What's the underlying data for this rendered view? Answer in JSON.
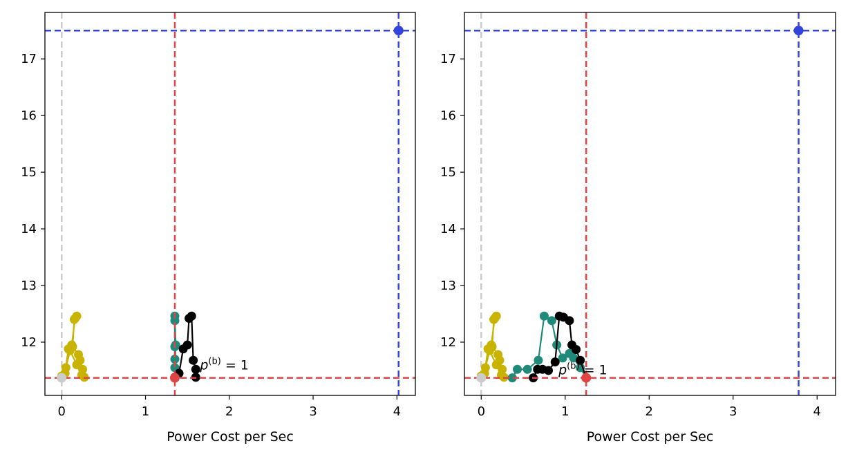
{
  "colors": {
    "blue": "#3344dd",
    "red": "#e04444",
    "gray": "#cccccc",
    "teal": "#1f8a7a",
    "black": "#000000",
    "yellow": "#c8b400"
  },
  "chart_data": [
    {
      "type": "line",
      "title": "",
      "xlabel": "Power Cost per Sec",
      "ylabel": "",
      "xlim": [
        -0.2,
        4.22
      ],
      "ylim": [
        11.06,
        17.82
      ],
      "xticks": [
        0,
        1,
        2,
        3,
        4
      ],
      "yticks": [
        12,
        13,
        14,
        15,
        16,
        17
      ],
      "reference_lines": {
        "blue_h": 17.5,
        "blue_v": 4.02,
        "red_h": 11.37,
        "red_v": 1.35,
        "gray_v": 0.0
      },
      "highlight_points": [
        {
          "x": 4.02,
          "y": 17.5,
          "color": "blue"
        },
        {
          "x": 1.35,
          "y": 11.37,
          "color": "red"
        },
        {
          "x": 0.0,
          "y": 11.37,
          "color": "gray"
        }
      ],
      "annotation": {
        "text": "p^{(b)} = 1",
        "x": 1.65,
        "y": 11.52
      },
      "series": [
        {
          "color": "yellow",
          "x": [
            0.0,
            0.04,
            0.08,
            0.12,
            0.16,
            0.18,
            0.15,
            0.13,
            0.2,
            0.22,
            0.25,
            0.27,
            0.24,
            0.18,
            0.1,
            0.05,
            0.0
          ],
          "y": [
            11.4,
            11.45,
            11.88,
            11.95,
            12.42,
            12.46,
            12.4,
            11.92,
            11.78,
            11.68,
            11.52,
            11.38,
            11.42,
            11.6,
            11.85,
            11.55,
            11.4
          ]
        },
        {
          "color": "teal",
          "x": [
            1.35,
            1.35,
            1.35,
            1.35,
            1.35,
            1.35,
            1.36,
            1.35
          ],
          "y": [
            11.38,
            11.55,
            11.7,
            11.92,
            12.38,
            12.46,
            11.95,
            11.38
          ]
        },
        {
          "color": "black",
          "x": [
            1.35,
            1.4,
            1.45,
            1.5,
            1.52,
            1.55,
            1.57,
            1.6,
            1.6
          ],
          "y": [
            11.38,
            11.45,
            11.88,
            11.95,
            12.42,
            12.46,
            11.68,
            11.52,
            11.38
          ]
        }
      ]
    },
    {
      "type": "line",
      "title": "",
      "xlabel": "Power Cost per Sec",
      "ylabel": "",
      "xlim": [
        -0.2,
        4.22
      ],
      "ylim": [
        11.06,
        17.82
      ],
      "xticks": [
        0,
        1,
        2,
        3,
        4
      ],
      "yticks": [
        12,
        13,
        14,
        15,
        16,
        17
      ],
      "reference_lines": {
        "blue_h": 17.5,
        "blue_v": 3.78,
        "red_h": 11.37,
        "red_v": 1.25,
        "gray_v": 0.0
      },
      "highlight_points": [
        {
          "x": 3.78,
          "y": 17.5,
          "color": "blue"
        },
        {
          "x": 1.25,
          "y": 11.37,
          "color": "red"
        },
        {
          "x": 0.0,
          "y": 11.37,
          "color": "gray"
        }
      ],
      "annotation": {
        "text": "p^{(b)} = 1",
        "x": 0.92,
        "y": 11.43
      },
      "series": [
        {
          "color": "yellow",
          "x": [
            0.0,
            0.04,
            0.08,
            0.12,
            0.16,
            0.18,
            0.15,
            0.13,
            0.2,
            0.22,
            0.25,
            0.27,
            0.24,
            0.18,
            0.1,
            0.05,
            0.0
          ],
          "y": [
            11.4,
            11.45,
            11.88,
            11.95,
            12.42,
            12.46,
            12.4,
            11.92,
            11.78,
            11.68,
            11.52,
            11.38,
            11.42,
            11.6,
            11.85,
            11.55,
            11.4
          ]
        },
        {
          "color": "teal",
          "x": [
            0.37,
            0.43,
            0.55,
            0.68,
            0.75,
            0.84,
            0.9,
            0.97,
            1.05,
            1.1,
            1.18,
            1.25
          ],
          "y": [
            11.37,
            11.52,
            11.52,
            11.68,
            12.46,
            12.38,
            11.95,
            11.72,
            11.8,
            11.72,
            11.55,
            11.37
          ]
        },
        {
          "color": "black",
          "x": [
            0.62,
            0.67,
            0.73,
            0.8,
            0.88,
            0.93,
            0.98,
            1.05,
            1.08,
            1.13,
            1.18,
            1.25
          ],
          "y": [
            11.37,
            11.52,
            11.52,
            11.5,
            11.65,
            12.46,
            12.44,
            12.38,
            11.95,
            11.87,
            11.68,
            11.37
          ]
        }
      ]
    }
  ]
}
